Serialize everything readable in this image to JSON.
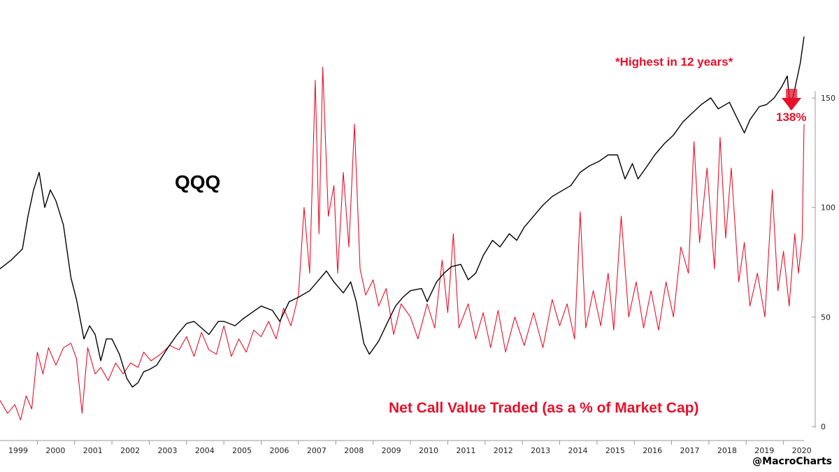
{
  "chart_data": {
    "type": "line",
    "title": "",
    "x_range": [
      1999.0,
      2020.55
    ],
    "y_range": [
      0,
      150
    ],
    "x_ticks": [
      "1999",
      "2000",
      "2001",
      "2002",
      "2003",
      "2004",
      "2005",
      "2006",
      "2007",
      "2008",
      "2009",
      "2010",
      "2011",
      "2012",
      "2013",
      "2014",
      "2015",
      "2016",
      "2017",
      "2018",
      "2019",
      "2020"
    ],
    "y_ticks": [
      "0",
      "50",
      "100",
      "150"
    ],
    "annotations": {
      "series_label_qqq": "QQQ",
      "series_label_net_call": "Net Call Value Traded (as a % of Market Cap)",
      "highlight": "*Highest in 12 years*",
      "callout_value": "138%",
      "credit": "@MacroCharts"
    },
    "series": [
      {
        "name": "QQQ",
        "color": "#000000",
        "points": [
          [
            1999.0,
            72
          ],
          [
            1999.3,
            76
          ],
          [
            1999.6,
            81
          ],
          [
            1999.75,
            96
          ],
          [
            1999.9,
            108
          ],
          [
            2000.05,
            116
          ],
          [
            2000.2,
            100
          ],
          [
            2000.35,
            108
          ],
          [
            2000.5,
            103
          ],
          [
            2000.7,
            92
          ],
          [
            2000.9,
            68
          ],
          [
            2001.05,
            58
          ],
          [
            2001.25,
            40
          ],
          [
            2001.4,
            46
          ],
          [
            2001.55,
            42
          ],
          [
            2001.7,
            30
          ],
          [
            2001.85,
            40
          ],
          [
            2002.0,
            40
          ],
          [
            2002.2,
            33
          ],
          [
            2002.4,
            22
          ],
          [
            2002.55,
            18
          ],
          [
            2002.7,
            20
          ],
          [
            2002.85,
            25
          ],
          [
            2003.0,
            26
          ],
          [
            2003.2,
            28
          ],
          [
            2003.5,
            36
          ],
          [
            2003.75,
            42
          ],
          [
            2004.0,
            47
          ],
          [
            2004.2,
            48
          ],
          [
            2004.4,
            45
          ],
          [
            2004.6,
            42
          ],
          [
            2004.85,
            48
          ],
          [
            2005.0,
            48
          ],
          [
            2005.3,
            46
          ],
          [
            2005.5,
            49
          ],
          [
            2005.75,
            52
          ],
          [
            2006.0,
            55
          ],
          [
            2006.3,
            53
          ],
          [
            2006.5,
            48
          ],
          [
            2006.75,
            57
          ],
          [
            2007.0,
            59
          ],
          [
            2007.3,
            62
          ],
          [
            2007.5,
            66
          ],
          [
            2007.75,
            71
          ],
          [
            2007.95,
            66
          ],
          [
            2008.2,
            61
          ],
          [
            2008.4,
            66
          ],
          [
            2008.55,
            57
          ],
          [
            2008.75,
            38
          ],
          [
            2008.9,
            33
          ],
          [
            2009.15,
            39
          ],
          [
            2009.4,
            48
          ],
          [
            2009.6,
            55
          ],
          [
            2009.8,
            59
          ],
          [
            2010.0,
            62
          ],
          [
            2010.3,
            63
          ],
          [
            2010.45,
            57
          ],
          [
            2010.7,
            66
          ],
          [
            2010.9,
            70
          ],
          [
            2011.1,
            73
          ],
          [
            2011.35,
            74
          ],
          [
            2011.55,
            67
          ],
          [
            2011.75,
            70
          ],
          [
            2011.95,
            78
          ],
          [
            2012.2,
            85
          ],
          [
            2012.4,
            82
          ],
          [
            2012.65,
            88
          ],
          [
            2012.85,
            85
          ],
          [
            2013.05,
            91
          ],
          [
            2013.3,
            96
          ],
          [
            2013.55,
            101
          ],
          [
            2013.8,
            105
          ],
          [
            2014.0,
            107
          ],
          [
            2014.3,
            110
          ],
          [
            2014.55,
            116
          ],
          [
            2014.8,
            119
          ],
          [
            2015.05,
            121
          ],
          [
            2015.3,
            124
          ],
          [
            2015.55,
            124
          ],
          [
            2015.75,
            113
          ],
          [
            2015.95,
            120
          ],
          [
            2016.1,
            113
          ],
          [
            2016.35,
            119
          ],
          [
            2016.55,
            124
          ],
          [
            2016.8,
            129
          ],
          [
            2017.05,
            133
          ],
          [
            2017.3,
            139
          ],
          [
            2017.55,
            143
          ],
          [
            2017.8,
            147
          ],
          [
            2018.05,
            150
          ],
          [
            2018.25,
            145
          ],
          [
            2018.55,
            148
          ],
          [
            2018.75,
            141
          ],
          [
            2018.95,
            134
          ],
          [
            2019.1,
            140
          ],
          [
            2019.35,
            146
          ],
          [
            2019.55,
            147
          ],
          [
            2019.75,
            150
          ],
          [
            2019.95,
            155
          ],
          [
            2020.1,
            160
          ],
          [
            2020.18,
            145
          ],
          [
            2020.3,
            154
          ],
          [
            2020.45,
            166
          ],
          [
            2020.55,
            178
          ]
        ]
      },
      {
        "name": "Net Call Value Traded (as a % of Market Cap)",
        "color": "#e8102a",
        "points": [
          [
            1999.0,
            12
          ],
          [
            1999.2,
            6
          ],
          [
            1999.4,
            10
          ],
          [
            1999.55,
            3
          ],
          [
            1999.7,
            14
          ],
          [
            1999.85,
            8
          ],
          [
            2000.0,
            34
          ],
          [
            2000.15,
            24
          ],
          [
            2000.3,
            36
          ],
          [
            2000.5,
            28
          ],
          [
            2000.7,
            36
          ],
          [
            2000.9,
            38
          ],
          [
            2001.05,
            31
          ],
          [
            2001.2,
            6
          ],
          [
            2001.35,
            36
          ],
          [
            2001.55,
            24
          ],
          [
            2001.7,
            27
          ],
          [
            2001.9,
            21
          ],
          [
            2002.1,
            29
          ],
          [
            2002.3,
            24
          ],
          [
            2002.5,
            29
          ],
          [
            2002.7,
            27
          ],
          [
            2002.85,
            34
          ],
          [
            2003.05,
            30
          ],
          [
            2003.3,
            33
          ],
          [
            2003.55,
            37
          ],
          [
            2003.8,
            35
          ],
          [
            2004.0,
            41
          ],
          [
            2004.2,
            32
          ],
          [
            2004.4,
            43
          ],
          [
            2004.6,
            35
          ],
          [
            2004.8,
            33
          ],
          [
            2005.0,
            46
          ],
          [
            2005.2,
            32
          ],
          [
            2005.4,
            40
          ],
          [
            2005.6,
            34
          ],
          [
            2005.8,
            44
          ],
          [
            2006.0,
            41
          ],
          [
            2006.2,
            48
          ],
          [
            2006.4,
            40
          ],
          [
            2006.6,
            54
          ],
          [
            2006.8,
            46
          ],
          [
            2007.0,
            60
          ],
          [
            2007.15,
            100
          ],
          [
            2007.3,
            70
          ],
          [
            2007.45,
            158
          ],
          [
            2007.55,
            88
          ],
          [
            2007.65,
            164
          ],
          [
            2007.8,
            96
          ],
          [
            2007.95,
            110
          ],
          [
            2008.05,
            70
          ],
          [
            2008.2,
            116
          ],
          [
            2008.35,
            82
          ],
          [
            2008.5,
            138
          ],
          [
            2008.65,
            72
          ],
          [
            2008.8,
            60
          ],
          [
            2009.0,
            67
          ],
          [
            2009.15,
            55
          ],
          [
            2009.35,
            63
          ],
          [
            2009.55,
            42
          ],
          [
            2009.75,
            56
          ],
          [
            2010.0,
            50
          ],
          [
            2010.2,
            40
          ],
          [
            2010.45,
            56
          ],
          [
            2010.65,
            45
          ],
          [
            2010.85,
            76
          ],
          [
            2011.0,
            52
          ],
          [
            2011.15,
            88
          ],
          [
            2011.3,
            45
          ],
          [
            2011.55,
            56
          ],
          [
            2011.75,
            40
          ],
          [
            2011.95,
            52
          ],
          [
            2012.15,
            36
          ],
          [
            2012.35,
            53
          ],
          [
            2012.55,
            34
          ],
          [
            2012.8,
            50
          ],
          [
            2013.05,
            37
          ],
          [
            2013.3,
            52
          ],
          [
            2013.55,
            36
          ],
          [
            2013.8,
            58
          ],
          [
            2014.0,
            46
          ],
          [
            2014.2,
            56
          ],
          [
            2014.4,
            40
          ],
          [
            2014.55,
            98
          ],
          [
            2014.7,
            45
          ],
          [
            2014.9,
            62
          ],
          [
            2015.1,
            46
          ],
          [
            2015.3,
            70
          ],
          [
            2015.45,
            44
          ],
          [
            2015.65,
            96
          ],
          [
            2015.85,
            50
          ],
          [
            2016.05,
            66
          ],
          [
            2016.25,
            45
          ],
          [
            2016.45,
            62
          ],
          [
            2016.65,
            44
          ],
          [
            2016.85,
            66
          ],
          [
            2017.05,
            50
          ],
          [
            2017.25,
            82
          ],
          [
            2017.45,
            70
          ],
          [
            2017.6,
            130
          ],
          [
            2017.75,
            84
          ],
          [
            2017.95,
            118
          ],
          [
            2018.15,
            72
          ],
          [
            2018.3,
            132
          ],
          [
            2018.45,
            86
          ],
          [
            2018.6,
            118
          ],
          [
            2018.8,
            66
          ],
          [
            2018.95,
            84
          ],
          [
            2019.1,
            55
          ],
          [
            2019.3,
            70
          ],
          [
            2019.5,
            50
          ],
          [
            2019.7,
            108
          ],
          [
            2019.85,
            62
          ],
          [
            2020.0,
            80
          ],
          [
            2020.15,
            55
          ],
          [
            2020.3,
            88
          ],
          [
            2020.4,
            70
          ],
          [
            2020.5,
            86
          ],
          [
            2020.55,
            138
          ]
        ]
      }
    ]
  },
  "colors": {
    "qqq_line": "#000000",
    "net_call_line": "#e8102a",
    "annotation_red": "#e8102a",
    "axis": "#999999"
  }
}
